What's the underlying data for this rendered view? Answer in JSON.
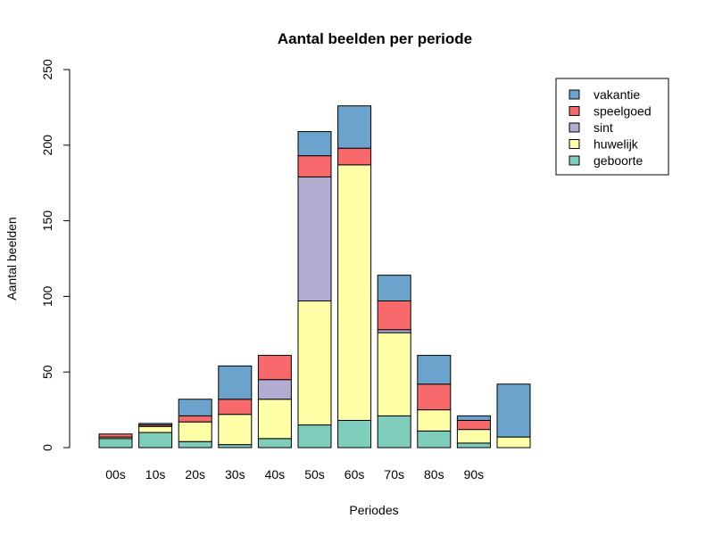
{
  "chart_data": {
    "type": "bar",
    "stacked": true,
    "title": "Aantal beelden per periode",
    "xlabel": "Periodes",
    "ylabel": "Aantal beelden",
    "ylim": [
      0,
      250
    ],
    "yticks": [
      "0",
      "50",
      "100",
      "150",
      "200",
      "250"
    ],
    "categories": [
      "00s",
      "10s",
      "20s",
      "30s",
      "40s",
      "50s",
      "60s",
      "70s",
      "80s",
      "90s",
      ""
    ],
    "series": [
      {
        "name": "geboorte",
        "color": "#7FCDBB",
        "values": [
          6,
          10,
          4,
          2,
          6,
          15,
          18,
          21,
          11,
          3,
          0
        ]
      },
      {
        "name": "huwelijk",
        "color": "#FFFFA8",
        "values": [
          1,
          4,
          13,
          20,
          26,
          82,
          169,
          55,
          14,
          9,
          7
        ]
      },
      {
        "name": "sint",
        "color": "#B3ABD2",
        "values": [
          0,
          0,
          0,
          0,
          13,
          82,
          0,
          2,
          0,
          0,
          0
        ]
      },
      {
        "name": "speelgoed",
        "color": "#F8696B",
        "values": [
          2,
          1,
          4,
          10,
          16,
          14,
          11,
          19,
          17,
          6,
          0
        ]
      },
      {
        "name": "vakantie",
        "color": "#6BA3CC",
        "values": [
          0,
          1,
          11,
          22,
          0,
          16,
          28,
          17,
          19,
          3,
          35
        ]
      }
    ],
    "legend": {
      "position": "top-right",
      "order": [
        "vakantie",
        "speelgoed",
        "sint",
        "huwelijk",
        "geboorte"
      ]
    },
    "grid": false
  }
}
